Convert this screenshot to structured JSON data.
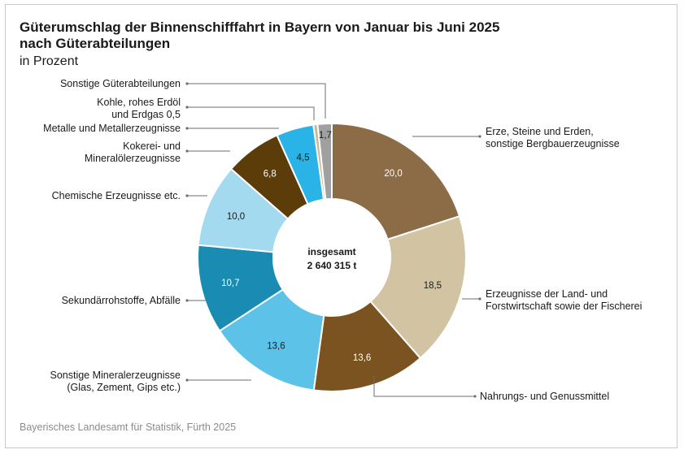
{
  "chart_data": {
    "type": "pie",
    "title": "Güterumschlag der Binnenschifffahrt in Bayern von Januar bis Juni 2025\nnach Güterabteilungen",
    "subtitle": "in Prozent",
    "center_label": [
      "insgesamt",
      "2 640 315 t"
    ],
    "source": "Bayerisches Landesamt für Statistik, Fürth 2025",
    "slices": [
      {
        "label": "Erze, Steine und Erden,\nsonstige Bergbauerzeugnisse",
        "value": 20.0,
        "display": "20,0",
        "color": "#8c6b47",
        "text_color": "#ffffff"
      },
      {
        "label": "Erzeugnisse der Land- und\nForstwirtschaft sowie der Fischerei",
        "value": 18.5,
        "display": "18,5",
        "color": "#d2c3a3",
        "text_color": "#1a1a1a"
      },
      {
        "label": "Nahrungs- und Genussmittel",
        "value": 13.6,
        "display": "13,6",
        "color": "#7a5320",
        "text_color": "#ffffff"
      },
      {
        "label": "Sonstige Mineralerzeugnisse\n(Glas, Zement, Gips etc.)",
        "value": 13.6,
        "display": "13,6",
        "color": "#5cc2e8",
        "text_color": "#1a1a1a"
      },
      {
        "label": "Sekundärrohstoffe, Abfälle",
        "value": 10.7,
        "display": "10,7",
        "color": "#1a8cb3",
        "text_color": "#ffffff"
      },
      {
        "label": "Chemische Erzeugnisse etc.",
        "value": 10.0,
        "display": "10,0",
        "color": "#a3daf0",
        "text_color": "#1a1a1a"
      },
      {
        "label": "Kokerei- und\nMineralölerzeugnisse",
        "value": 6.8,
        "display": "6,8",
        "color": "#5c3d0a",
        "text_color": "#ffffff"
      },
      {
        "label": "Metalle und Metallerzeugnisse",
        "value": 4.5,
        "display": "4,5",
        "color": "#29b3e6",
        "text_color": "#1a1a1a"
      },
      {
        "label": "Kohle, rohes Erdöl\nund Erdgas 0,5",
        "value": 0.5,
        "display": "",
        "color": "#c8b894",
        "text_color": "#1a1a1a"
      },
      {
        "label": "Sonstige Güterabteilungen",
        "value": 1.7,
        "display": "1,7",
        "color": "#a0a0a0",
        "text_color": "#1a1a1a"
      }
    ]
  }
}
